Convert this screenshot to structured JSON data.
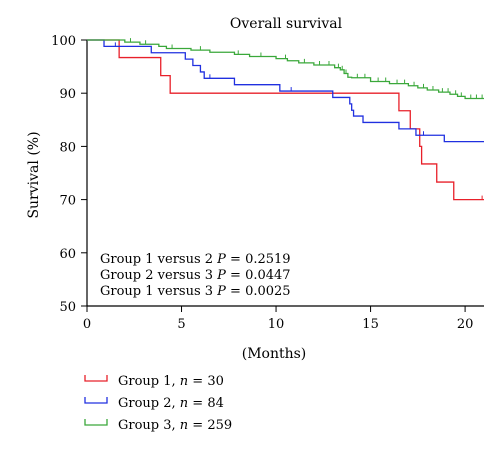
{
  "chart_data": {
    "type": "line",
    "title": "Overall survival",
    "xlabel": "(Months)",
    "ylabel": "Survival (%)",
    "xlim": [
      0,
      21
    ],
    "ylim": [
      50,
      100
    ],
    "x_ticks": [
      0,
      5,
      10,
      15,
      20
    ],
    "y_ticks": [
      50,
      60,
      70,
      80,
      90,
      100
    ],
    "grid": false,
    "step": true,
    "legend_position": "bottom-left, below chart",
    "annotations": [
      {
        "prefix": "Group 1 versus 2 ",
        "p": "P",
        "value": " = 0.2519"
      },
      {
        "prefix": "Group 2 versus 3 ",
        "p": "P",
        "value": " = 0.0447"
      },
      {
        "prefix": "Group 1 versus 3 ",
        "p": "P",
        "value": " = 0.0025"
      }
    ],
    "series": [
      {
        "name": "Group 1, n = 30",
        "label_parts": {
          "text": "Group 1, ",
          "n": "n",
          "rest": " = 30"
        },
        "color": "#e8202a",
        "points": [
          [
            0,
            100
          ],
          [
            1.7,
            96.7
          ],
          [
            3.9,
            93.3
          ],
          [
            4.4,
            90.0
          ],
          [
            16.5,
            86.7
          ],
          [
            17.1,
            83.3
          ],
          [
            17.6,
            80.0
          ],
          [
            17.7,
            76.7
          ],
          [
            18.5,
            73.3
          ],
          [
            19.4,
            70.0
          ],
          [
            21,
            70.0
          ]
        ],
        "censors": [
          [
            20.9,
            70.0
          ]
        ]
      },
      {
        "name": "Group 2, n = 84",
        "label_parts": {
          "text": "Group 2, ",
          "n": "n",
          "rest": " = 84"
        },
        "color": "#2030e0",
        "points": [
          [
            0,
            100
          ],
          [
            0.9,
            98.8
          ],
          [
            3.4,
            97.6
          ],
          [
            5.2,
            96.4
          ],
          [
            5.6,
            95.2
          ],
          [
            6.0,
            94.0
          ],
          [
            6.2,
            92.8
          ],
          [
            7.0,
            92.8
          ],
          [
            7.8,
            91.6
          ],
          [
            10.2,
            90.4
          ],
          [
            13.0,
            89.2
          ],
          [
            13.9,
            88.0
          ],
          [
            14.0,
            86.8
          ],
          [
            14.1,
            85.7
          ],
          [
            14.6,
            84.5
          ],
          [
            16.5,
            83.3
          ],
          [
            17.4,
            82.1
          ],
          [
            18.9,
            80.9
          ],
          [
            21,
            80.9
          ]
        ],
        "censors": [
          [
            1.5,
            98.8
          ],
          [
            6.5,
            92.8
          ],
          [
            10.8,
            90.4
          ],
          [
            17.8,
            82.1
          ]
        ]
      },
      {
        "name": "Group 3, n = 259",
        "label_parts": {
          "text": "Group 3, ",
          "n": "n",
          "rest": " = 259"
        },
        "color": "#3aa83a",
        "points": [
          [
            0,
            100
          ],
          [
            1.5,
            100
          ],
          [
            2.0,
            99.6
          ],
          [
            2.8,
            99.2
          ],
          [
            3.8,
            98.8
          ],
          [
            4.2,
            98.4
          ],
          [
            5.5,
            98.1
          ],
          [
            6.5,
            97.7
          ],
          [
            7.8,
            97.3
          ],
          [
            8.6,
            96.9
          ],
          [
            10.0,
            96.5
          ],
          [
            10.6,
            96.1
          ],
          [
            11.2,
            95.7
          ],
          [
            12.0,
            95.3
          ],
          [
            12.5,
            95.3
          ],
          [
            13.1,
            94.8
          ],
          [
            13.4,
            94.4
          ],
          [
            13.6,
            93.7
          ],
          [
            13.8,
            93.0
          ],
          [
            14.0,
            92.9
          ],
          [
            15.0,
            92.2
          ],
          [
            16.0,
            91.8
          ],
          [
            17.0,
            91.4
          ],
          [
            17.5,
            91.0
          ],
          [
            18.0,
            90.6
          ],
          [
            18.6,
            90.2
          ],
          [
            19.2,
            89.8
          ],
          [
            19.6,
            89.4
          ],
          [
            20.0,
            89.0
          ],
          [
            21,
            89.0
          ]
        ],
        "censors": [
          [
            2.3,
            99.6
          ],
          [
            3.1,
            99.2
          ],
          [
            4.5,
            98.4
          ],
          [
            6.0,
            98.1
          ],
          [
            8.0,
            97.3
          ],
          [
            9.2,
            96.9
          ],
          [
            10.5,
            96.5
          ],
          [
            11.5,
            95.7
          ],
          [
            12.3,
            95.3
          ],
          [
            12.8,
            95.3
          ],
          [
            13.3,
            94.8
          ],
          [
            13.5,
            94.4
          ],
          [
            13.7,
            93.7
          ],
          [
            14.3,
            92.9
          ],
          [
            14.7,
            92.9
          ],
          [
            15.4,
            92.2
          ],
          [
            15.8,
            92.2
          ],
          [
            16.4,
            91.8
          ],
          [
            16.8,
            91.8
          ],
          [
            17.3,
            91.4
          ],
          [
            17.8,
            91.0
          ],
          [
            18.3,
            90.6
          ],
          [
            18.8,
            90.2
          ],
          [
            19.1,
            90.2
          ],
          [
            19.5,
            89.8
          ],
          [
            19.8,
            89.4
          ],
          [
            20.3,
            89.0
          ],
          [
            20.6,
            89.0
          ],
          [
            20.9,
            89.0
          ]
        ]
      }
    ]
  }
}
